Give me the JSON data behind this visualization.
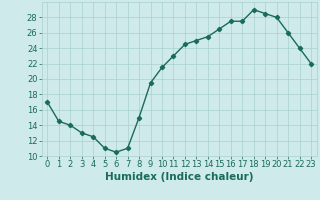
{
  "x": [
    0,
    1,
    2,
    3,
    4,
    5,
    6,
    7,
    8,
    9,
    10,
    11,
    12,
    13,
    14,
    15,
    16,
    17,
    18,
    19,
    20,
    21,
    22,
    23
  ],
  "y": [
    17,
    14.5,
    14,
    13,
    12.5,
    11,
    10.5,
    11,
    15,
    19.5,
    21.5,
    23,
    24.5,
    25,
    25.5,
    26.5,
    27.5,
    27.5,
    29,
    28.5,
    28,
    26,
    24,
    22
  ],
  "line_color": "#1a6b5a",
  "marker": "D",
  "marker_size": 2.2,
  "background_color": "#ceeaea",
  "grid_color": "#aacfcf",
  "xlabel": "Humidex (Indice chaleur)",
  "xlim": [
    -0.5,
    23.5
  ],
  "ylim": [
    10,
    30
  ],
  "yticks": [
    10,
    12,
    14,
    16,
    18,
    20,
    22,
    24,
    26,
    28
  ],
  "xticks": [
    0,
    1,
    2,
    3,
    4,
    5,
    6,
    7,
    8,
    9,
    10,
    11,
    12,
    13,
    14,
    15,
    16,
    17,
    18,
    19,
    20,
    21,
    22,
    23
  ],
  "xlabel_fontsize": 7.5,
  "tick_fontsize": 6,
  "line_width": 1.0,
  "tick_color": "#1a6b5a",
  "label_color": "#1a6b5a"
}
